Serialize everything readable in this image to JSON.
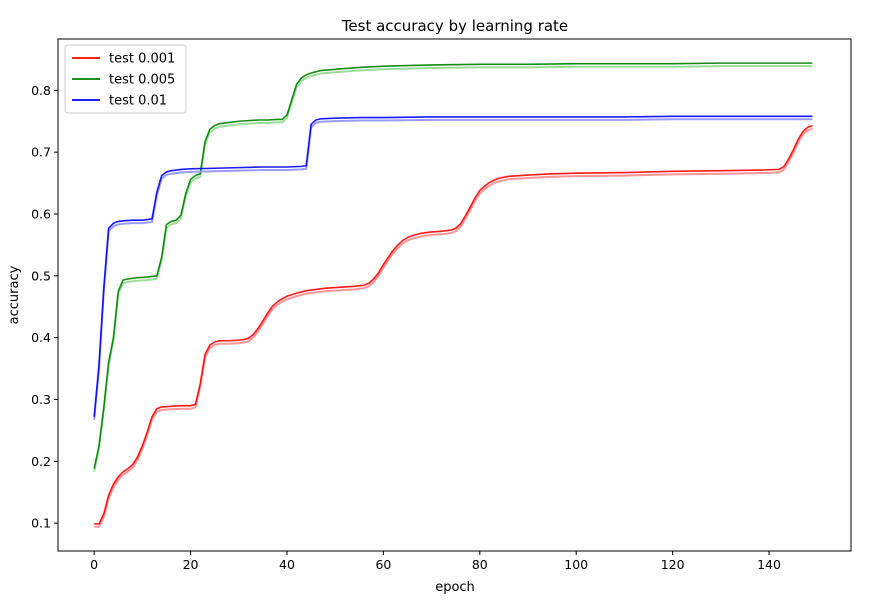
{
  "chart_data": {
    "type": "line",
    "title": "Test accuracy by learning rate",
    "xlabel": "epoch",
    "ylabel": "accuracy",
    "xlim": [
      -7.5,
      157
    ],
    "ylim": [
      0.055,
      0.883
    ],
    "xticks": [
      0,
      20,
      40,
      60,
      80,
      100,
      120,
      140
    ],
    "yticks": [
      0.1,
      0.2,
      0.3,
      0.4,
      0.5,
      0.6,
      0.7,
      0.8
    ],
    "grid": false,
    "legend_position": "top-left",
    "series": [
      {
        "name": "test 0.001",
        "color": "#ff0000",
        "shadow_color": "#ff8a8a",
        "points": [
          [
            0,
            0.099
          ],
          [
            1,
            0.099
          ],
          [
            2,
            0.115
          ],
          [
            3,
            0.145
          ],
          [
            4,
            0.163
          ],
          [
            5,
            0.175
          ],
          [
            6,
            0.183
          ],
          [
            7,
            0.188
          ],
          [
            8,
            0.195
          ],
          [
            9,
            0.207
          ],
          [
            10,
            0.225
          ],
          [
            11,
            0.247
          ],
          [
            12,
            0.272
          ],
          [
            13,
            0.285
          ],
          [
            14,
            0.288
          ],
          [
            16,
            0.289
          ],
          [
            18,
            0.29
          ],
          [
            20,
            0.29
          ],
          [
            21,
            0.292
          ],
          [
            22,
            0.325
          ],
          [
            23,
            0.373
          ],
          [
            24,
            0.388
          ],
          [
            25,
            0.393
          ],
          [
            26,
            0.395
          ],
          [
            28,
            0.395
          ],
          [
            30,
            0.396
          ],
          [
            31,
            0.397
          ],
          [
            32,
            0.399
          ],
          [
            33,
            0.405
          ],
          [
            34,
            0.415
          ],
          [
            35,
            0.427
          ],
          [
            36,
            0.44
          ],
          [
            37,
            0.451
          ],
          [
            38,
            0.458
          ],
          [
            39,
            0.463
          ],
          [
            40,
            0.467
          ],
          [
            42,
            0.472
          ],
          [
            44,
            0.476
          ],
          [
            46,
            0.478
          ],
          [
            48,
            0.48
          ],
          [
            50,
            0.481
          ],
          [
            52,
            0.482
          ],
          [
            54,
            0.483
          ],
          [
            56,
            0.485
          ],
          [
            57,
            0.488
          ],
          [
            58,
            0.495
          ],
          [
            59,
            0.505
          ],
          [
            60,
            0.518
          ],
          [
            61,
            0.53
          ],
          [
            62,
            0.541
          ],
          [
            63,
            0.55
          ],
          [
            64,
            0.557
          ],
          [
            65,
            0.562
          ],
          [
            66,
            0.565
          ],
          [
            68,
            0.569
          ],
          [
            70,
            0.571
          ],
          [
            72,
            0.572
          ],
          [
            74,
            0.574
          ],
          [
            75,
            0.577
          ],
          [
            76,
            0.584
          ],
          [
            77,
            0.597
          ],
          [
            78,
            0.611
          ],
          [
            79,
            0.626
          ],
          [
            80,
            0.638
          ],
          [
            81,
            0.645
          ],
          [
            82,
            0.651
          ],
          [
            83,
            0.655
          ],
          [
            84,
            0.658
          ],
          [
            86,
            0.661
          ],
          [
            88,
            0.662
          ],
          [
            90,
            0.663
          ],
          [
            95,
            0.665
          ],
          [
            100,
            0.666
          ],
          [
            110,
            0.667
          ],
          [
            120,
            0.669
          ],
          [
            130,
            0.67
          ],
          [
            138,
            0.671
          ],
          [
            142,
            0.672
          ],
          [
            143,
            0.676
          ],
          [
            144,
            0.688
          ],
          [
            145,
            0.703
          ],
          [
            146,
            0.72
          ],
          [
            147,
            0.733
          ],
          [
            148,
            0.74
          ],
          [
            149,
            0.743
          ]
        ]
      },
      {
        "name": "test 0.005",
        "color": "#008000",
        "shadow_color": "#90d890",
        "points": [
          [
            0,
            0.188
          ],
          [
            1,
            0.225
          ],
          [
            2,
            0.287
          ],
          [
            3,
            0.36
          ],
          [
            4,
            0.4
          ],
          [
            5,
            0.475
          ],
          [
            6,
            0.493
          ],
          [
            7,
            0.495
          ],
          [
            9,
            0.497
          ],
          [
            11,
            0.498
          ],
          [
            12,
            0.499
          ],
          [
            13,
            0.5
          ],
          [
            14,
            0.53
          ],
          [
            15,
            0.583
          ],
          [
            16,
            0.588
          ],
          [
            17,
            0.59
          ],
          [
            18,
            0.598
          ],
          [
            19,
            0.633
          ],
          [
            20,
            0.656
          ],
          [
            21,
            0.662
          ],
          [
            22,
            0.665
          ],
          [
            23,
            0.717
          ],
          [
            24,
            0.737
          ],
          [
            25,
            0.743
          ],
          [
            26,
            0.746
          ],
          [
            28,
            0.748
          ],
          [
            30,
            0.75
          ],
          [
            32,
            0.751
          ],
          [
            34,
            0.752
          ],
          [
            36,
            0.752
          ],
          [
            38,
            0.753
          ],
          [
            39,
            0.753
          ],
          [
            40,
            0.76
          ],
          [
            41,
            0.785
          ],
          [
            42,
            0.81
          ],
          [
            43,
            0.82
          ],
          [
            44,
            0.825
          ],
          [
            45,
            0.828
          ],
          [
            47,
            0.832
          ],
          [
            50,
            0.834
          ],
          [
            55,
            0.837
          ],
          [
            60,
            0.839
          ],
          [
            70,
            0.841
          ],
          [
            80,
            0.842
          ],
          [
            90,
            0.842
          ],
          [
            100,
            0.843
          ],
          [
            110,
            0.843
          ],
          [
            120,
            0.843
          ],
          [
            130,
            0.844
          ],
          [
            140,
            0.844
          ],
          [
            149,
            0.844
          ]
        ]
      },
      {
        "name": "test 0.01",
        "color": "#0000ff",
        "shadow_color": "#9090ff",
        "points": [
          [
            0,
            0.272
          ],
          [
            1,
            0.355
          ],
          [
            2,
            0.48
          ],
          [
            3,
            0.577
          ],
          [
            4,
            0.585
          ],
          [
            5,
            0.588
          ],
          [
            6,
            0.589
          ],
          [
            8,
            0.59
          ],
          [
            10,
            0.59
          ],
          [
            11,
            0.591
          ],
          [
            12,
            0.592
          ],
          [
            13,
            0.635
          ],
          [
            14,
            0.662
          ],
          [
            15,
            0.668
          ],
          [
            16,
            0.67
          ],
          [
            18,
            0.672
          ],
          [
            20,
            0.673
          ],
          [
            25,
            0.674
          ],
          [
            30,
            0.675
          ],
          [
            35,
            0.676
          ],
          [
            40,
            0.676
          ],
          [
            43,
            0.677
          ],
          [
            44,
            0.678
          ],
          [
            45,
            0.745
          ],
          [
            46,
            0.752
          ],
          [
            47,
            0.754
          ],
          [
            50,
            0.755
          ],
          [
            55,
            0.756
          ],
          [
            60,
            0.756
          ],
          [
            70,
            0.757
          ],
          [
            80,
            0.757
          ],
          [
            90,
            0.757
          ],
          [
            100,
            0.757
          ],
          [
            110,
            0.757
          ],
          [
            120,
            0.758
          ],
          [
            130,
            0.758
          ],
          [
            140,
            0.758
          ],
          [
            149,
            0.758
          ]
        ]
      }
    ]
  }
}
